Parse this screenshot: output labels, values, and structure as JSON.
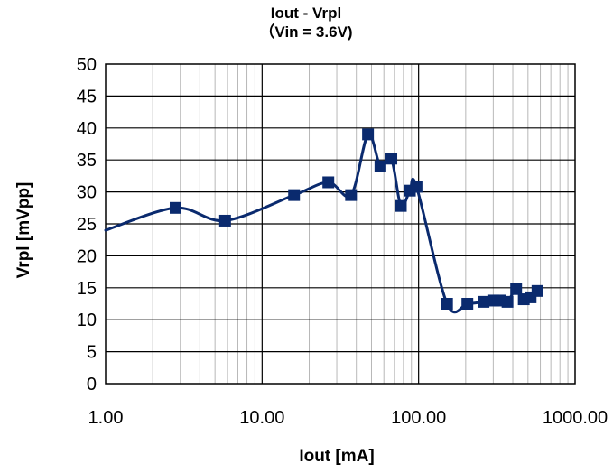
{
  "chart_data": {
    "type": "line",
    "title": "Iout - Vrpl",
    "subtitle": "（Vin = 3.6V)",
    "xlabel": "Iout [mA]",
    "ylabel": "Vrpl [mVpp]",
    "x_scale": "log",
    "xlim": [
      1,
      1000
    ],
    "ylim": [
      0,
      50
    ],
    "x_ticks": [
      "1.00",
      "10.00",
      "100.00",
      "1000.00"
    ],
    "y_ticks": [
      "0",
      "5",
      "10",
      "15",
      "20",
      "25",
      "30",
      "35",
      "40",
      "45",
      "50"
    ],
    "grid": true,
    "legend": "none",
    "line_color": "#0a2a6e",
    "line_start": {
      "x": 1.0,
      "y": 24.0
    },
    "series": [
      {
        "x": [
          2.8,
          5.8,
          16,
          26.5,
          37,
          47.5,
          57,
          67,
          77,
          88,
          97,
          152,
          205,
          260,
          300,
          330,
          370,
          420,
          470,
          520,
          575
        ],
        "y": [
          27.5,
          25.5,
          29.5,
          31.5,
          29.5,
          39,
          34,
          35.2,
          27.8,
          30.2,
          30.8,
          12.5,
          12.5,
          12.8,
          13,
          13,
          12.8,
          14.8,
          13.2,
          13.5,
          14.5
        ]
      }
    ]
  }
}
